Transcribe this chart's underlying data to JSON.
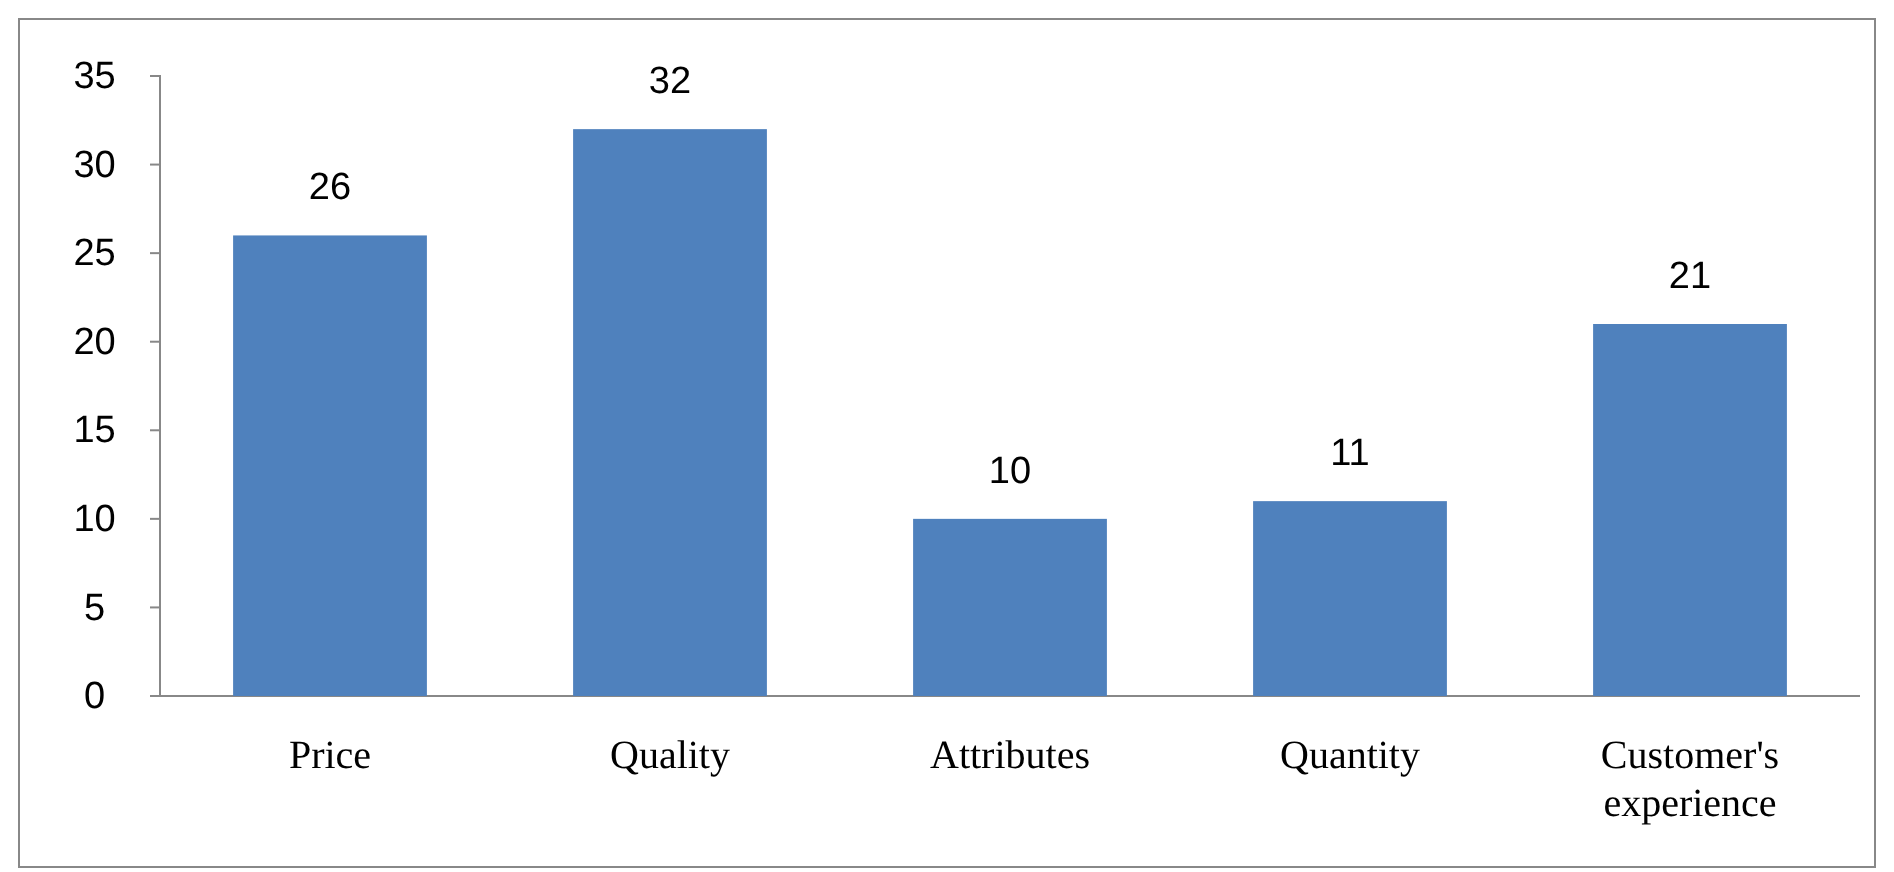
{
  "chart_data": {
    "type": "bar",
    "categories": [
      "Price",
      "Quality",
      "Attributes",
      "Quantity",
      "Customer's experience"
    ],
    "values": [
      26,
      32,
      10,
      11,
      21
    ],
    "color": "#4f81bd",
    "ylim": [
      0,
      35
    ],
    "yticks": [
      0,
      5,
      10,
      15,
      20,
      25,
      30,
      35
    ],
    "grid": false,
    "data_labels": true
  }
}
